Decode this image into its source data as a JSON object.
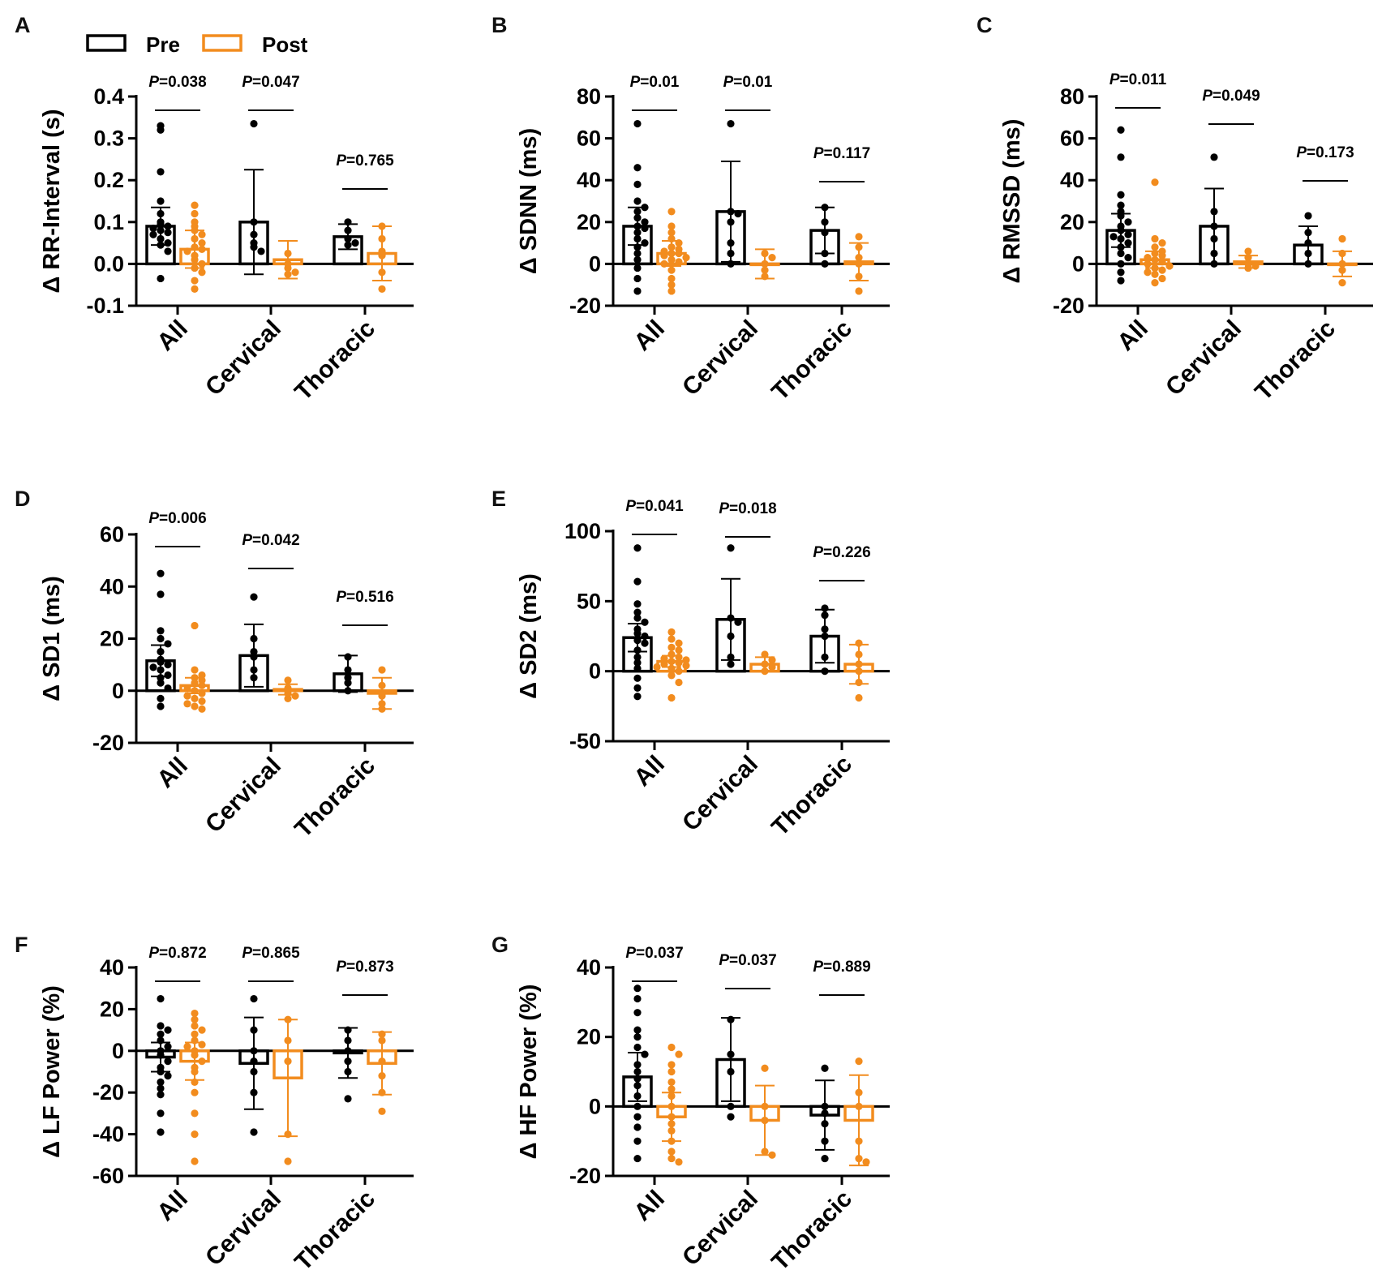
{
  "legend": {
    "pre_label": "Pre",
    "post_label": "Post"
  },
  "colors": {
    "pre": "#000000",
    "post": "#F28C1E"
  },
  "chart_data": [
    {
      "id": "A",
      "type": "bar",
      "title": "",
      "ylabel": "Δ RR-Interval (s)",
      "ylim": [
        -0.1,
        0.4
      ],
      "yticks": [
        -0.1,
        0.0,
        0.1,
        0.2,
        0.3,
        0.4
      ],
      "ytick_labels": [
        "-0.1",
        "0.0",
        "0.1",
        "0.2",
        "0.3",
        "0.4"
      ],
      "categories": [
        "All",
        "Cervical",
        "Thoracic"
      ],
      "p_values": [
        "0.038",
        "0.047",
        "0.765"
      ],
      "series": [
        {
          "name": "Pre",
          "values": [
            0.09,
            0.1,
            0.065
          ],
          "sd": [
            0.045,
            0.125,
            0.03
          ],
          "points": [
            [
              0.33,
              0.32,
              0.22,
              0.15,
              0.12,
              0.1,
              0.095,
              0.09,
              0.085,
              0.08,
              0.075,
              0.07,
              0.06,
              0.05,
              0.045,
              0.03,
              -0.035
            ],
            [
              0.335,
              0.1,
              0.07,
              0.05,
              0.04,
              0.03
            ],
            [
              0.1,
              0.08,
              0.06,
              0.05,
              0.045
            ]
          ]
        },
        {
          "name": "Post",
          "values": [
            0.035,
            0.01,
            0.025
          ],
          "sd": [
            0.045,
            0.045,
            0.065
          ],
          "points": [
            [
              0.14,
              0.12,
              0.1,
              0.09,
              0.08,
              0.07,
              0.06,
              0.05,
              0.04,
              0.035,
              0.03,
              0.02,
              0.01,
              0.0,
              -0.01,
              -0.02,
              -0.04,
              -0.06
            ],
            [
              0.025,
              0.0,
              -0.01,
              -0.02,
              -0.025
            ],
            [
              0.09,
              0.06,
              0.03,
              0.02,
              -0.02,
              -0.06
            ]
          ]
        }
      ]
    },
    {
      "id": "B",
      "type": "bar",
      "title": "",
      "ylabel": "Δ SDNN (ms)",
      "ylim": [
        -20,
        80
      ],
      "yticks": [
        -20,
        0,
        20,
        40,
        60,
        80
      ],
      "ytick_labels": [
        "-20",
        "0",
        "20",
        "40",
        "60",
        "80"
      ],
      "categories": [
        "All",
        "Cervical",
        "Thoracic"
      ],
      "p_values": [
        "0.01",
        "0.01",
        "0.117"
      ],
      "series": [
        {
          "name": "Pre",
          "values": [
            18,
            25,
            16
          ],
          "sd": [
            9,
            24,
            11
          ],
          "points": [
            [
              67,
              46,
              38,
              30,
              27,
              25,
              22,
              20,
              18,
              17,
              15,
              12,
              10,
              8,
              5,
              2,
              -2,
              -7,
              -13
            ],
            [
              67,
              25,
              24,
              20,
              10,
              5,
              0
            ],
            [
              27,
              20,
              15,
              5,
              0
            ]
          ]
        },
        {
          "name": "Post",
          "values": [
            5,
            0,
            1
          ],
          "sd": [
            6,
            7,
            9
          ],
          "points": [
            [
              25,
              18,
              15,
              12,
              10,
              8,
              7,
              6,
              5,
              5,
              4,
              3,
              2,
              1,
              0,
              -3,
              -7,
              -10,
              -13
            ],
            [
              5,
              3,
              0,
              -3,
              -6
            ],
            [
              13,
              8,
              3,
              0,
              -6,
              -13
            ]
          ]
        }
      ]
    },
    {
      "id": "C",
      "type": "bar",
      "title": "",
      "ylabel": "Δ RMSSD (ms)",
      "ylim": [
        -20,
        80
      ],
      "yticks": [
        -20,
        0,
        20,
        40,
        60,
        80
      ],
      "ytick_labels": [
        "-20",
        "0",
        "20",
        "40",
        "60",
        "80"
      ],
      "categories": [
        "All",
        "Cervical",
        "Thoracic"
      ],
      "p_values": [
        "0.011",
        "0.049",
        "0.173"
      ],
      "series": [
        {
          "name": "Pre",
          "values": [
            16,
            18,
            9
          ],
          "sd": [
            8,
            18,
            9
          ],
          "points": [
            [
              64,
              51,
              33,
              28,
              25,
              23,
              20,
              18,
              16,
              14,
              13,
              12,
              10,
              8,
              5,
              3,
              0,
              -4,
              -8
            ],
            [
              51,
              25,
              18,
              12,
              5,
              0
            ],
            [
              23,
              15,
              10,
              5,
              0
            ]
          ]
        },
        {
          "name": "Post",
          "values": [
            2,
            1,
            0
          ],
          "sd": [
            4,
            3,
            6
          ],
          "points": [
            [
              39,
              12,
              10,
              8,
              6,
              5,
              4,
              3,
              2,
              1,
              0,
              -1,
              -2,
              -3,
              -4,
              -5,
              -7,
              -9
            ],
            [
              6,
              3,
              0,
              -1,
              -2
            ],
            [
              12,
              5,
              0,
              -3,
              -9
            ]
          ]
        }
      ]
    },
    {
      "id": "D",
      "type": "bar",
      "title": "",
      "ylabel": "Δ SD1 (ms)",
      "ylim": [
        -20,
        60
      ],
      "yticks": [
        -20,
        0,
        20,
        40,
        60
      ],
      "ytick_labels": [
        "-20",
        "0",
        "20",
        "40",
        "60"
      ],
      "categories": [
        "All",
        "Cervical",
        "Thoracic"
      ],
      "p_values": [
        "0.006",
        "0.042",
        "0.516"
      ],
      "series": [
        {
          "name": "Pre",
          "values": [
            11.5,
            13.5,
            6.5
          ],
          "sd": [
            6,
            12,
            7
          ],
          "points": [
            [
              45,
              37,
              23,
              20,
              18,
              15,
              12,
              11,
              10,
              9,
              8,
              6,
              5,
              3,
              1,
              -3,
              -6
            ],
            [
              36,
              20,
              15,
              13,
              8,
              5
            ],
            [
              13,
              8,
              5,
              3,
              0
            ]
          ]
        },
        {
          "name": "Post",
          "values": [
            2,
            0.5,
            -1
          ],
          "sd": [
            3,
            2,
            6
          ],
          "points": [
            [
              25,
              8,
              6,
              5,
              4,
              3,
              2,
              1,
              0,
              -1,
              -2,
              -3,
              -4,
              -5,
              -6,
              -7
            ],
            [
              4,
              1,
              -1,
              -2,
              -3
            ],
            [
              8,
              2,
              -2,
              -5,
              -7
            ]
          ]
        }
      ]
    },
    {
      "id": "E",
      "type": "bar",
      "title": "",
      "ylabel": "Δ SD2 (ms)",
      "ylim": [
        -50,
        100
      ],
      "yticks": [
        -50,
        0,
        50,
        100
      ],
      "ytick_labels": [
        "-50",
        "0",
        "50",
        "100"
      ],
      "categories": [
        "All",
        "Cervical",
        "Thoracic"
      ],
      "p_values": [
        "0.041",
        "0.018",
        "0.226"
      ],
      "series": [
        {
          "name": "Pre",
          "values": [
            24,
            37,
            25
          ],
          "sd": [
            10,
            29,
            19
          ],
          "points": [
            [
              88,
              64,
              48,
              42,
              38,
              35,
              30,
              27,
              25,
              22,
              20,
              15,
              10,
              6,
              2,
              -5,
              -12,
              -18
            ],
            [
              88,
              38,
              35,
              25,
              10,
              5
            ],
            [
              45,
              40,
              30,
              25,
              10,
              0
            ]
          ]
        },
        {
          "name": "Post",
          "values": [
            7,
            5,
            5
          ],
          "sd": [
            4,
            5,
            14
          ],
          "points": [
            [
              28,
              23,
              20,
              17,
              15,
              12,
              10,
              9,
              8,
              7,
              6,
              5,
              4,
              3,
              2,
              0,
              -3,
              -8,
              -19
            ],
            [
              12,
              8,
              5,
              3,
              0
            ],
            [
              20,
              12,
              5,
              0,
              -8,
              -19
            ]
          ]
        }
      ]
    },
    {
      "id": "F",
      "type": "bar",
      "title": "",
      "ylabel": "Δ LF Power (%)",
      "ylim": [
        -60,
        40
      ],
      "yticks": [
        -60,
        -40,
        -20,
        0,
        20,
        40
      ],
      "ytick_labels": [
        "-60",
        "-40",
        "-20",
        "0",
        "20",
        "40"
      ],
      "categories": [
        "All",
        "Cervical",
        "Thoracic"
      ],
      "p_values": [
        "0.872",
        "0.865",
        "0.873"
      ],
      "series": [
        {
          "name": "Pre",
          "values": [
            -3,
            -6,
            -1
          ],
          "sd": [
            7,
            22,
            12
          ],
          "points": [
            [
              25,
              12,
              10,
              8,
              5,
              2,
              0,
              -2,
              -5,
              -8,
              -10,
              -12,
              -15,
              -18,
              -21,
              -30,
              -39
            ],
            [
              25,
              10,
              0,
              -5,
              -10,
              -20,
              -39
            ],
            [
              10,
              5,
              0,
              -5,
              -10,
              -23
            ]
          ]
        },
        {
          "name": "Post",
          "values": [
            -5,
            -13,
            -6
          ],
          "sd": [
            9,
            28,
            15
          ],
          "points": [
            [
              18,
              15,
              12,
              10,
              8,
              5,
              3,
              2,
              0,
              -2,
              -5,
              -8,
              -10,
              -15,
              -20,
              -30,
              -40,
              -53
            ],
            [
              15,
              5,
              -5,
              -40,
              -53
            ],
            [
              8,
              5,
              -5,
              -12,
              -20,
              -29
            ]
          ]
        }
      ]
    },
    {
      "id": "G",
      "type": "bar",
      "title": "",
      "ylabel": "Δ HF Power (%)",
      "ylim": [
        -20,
        40
      ],
      "yticks": [
        -20,
        0,
        20,
        40
      ],
      "ytick_labels": [
        "-20",
        "0",
        "20",
        "40"
      ],
      "categories": [
        "All",
        "Cervical",
        "Thoracic"
      ],
      "p_values": [
        "0.037",
        "0.037",
        "0.889"
      ],
      "series": [
        {
          "name": "Pre",
          "values": [
            8.5,
            13.5,
            -2.5
          ],
          "sd": [
            7,
            12,
            10
          ],
          "points": [
            [
              34,
              31,
              27,
              22,
              20,
              17,
              15,
              12,
              10,
              8,
              6,
              3,
              0,
              -3,
              -6,
              -10,
              -15
            ],
            [
              25,
              15,
              10,
              0,
              -3
            ],
            [
              11,
              0,
              -2,
              -5,
              -10,
              -15
            ]
          ]
        },
        {
          "name": "Post",
          "values": [
            -3,
            -4,
            -4
          ],
          "sd": [
            7,
            10,
            13
          ],
          "points": [
            [
              17,
              15,
              12,
              10,
              7,
              5,
              3,
              0,
              -3,
              -5,
              -7,
              -10,
              -13,
              -15,
              -16
            ],
            [
              11,
              0,
              -4,
              -13,
              -14
            ],
            [
              13,
              4,
              0,
              -10,
              -15,
              -16
            ]
          ]
        }
      ]
    }
  ]
}
